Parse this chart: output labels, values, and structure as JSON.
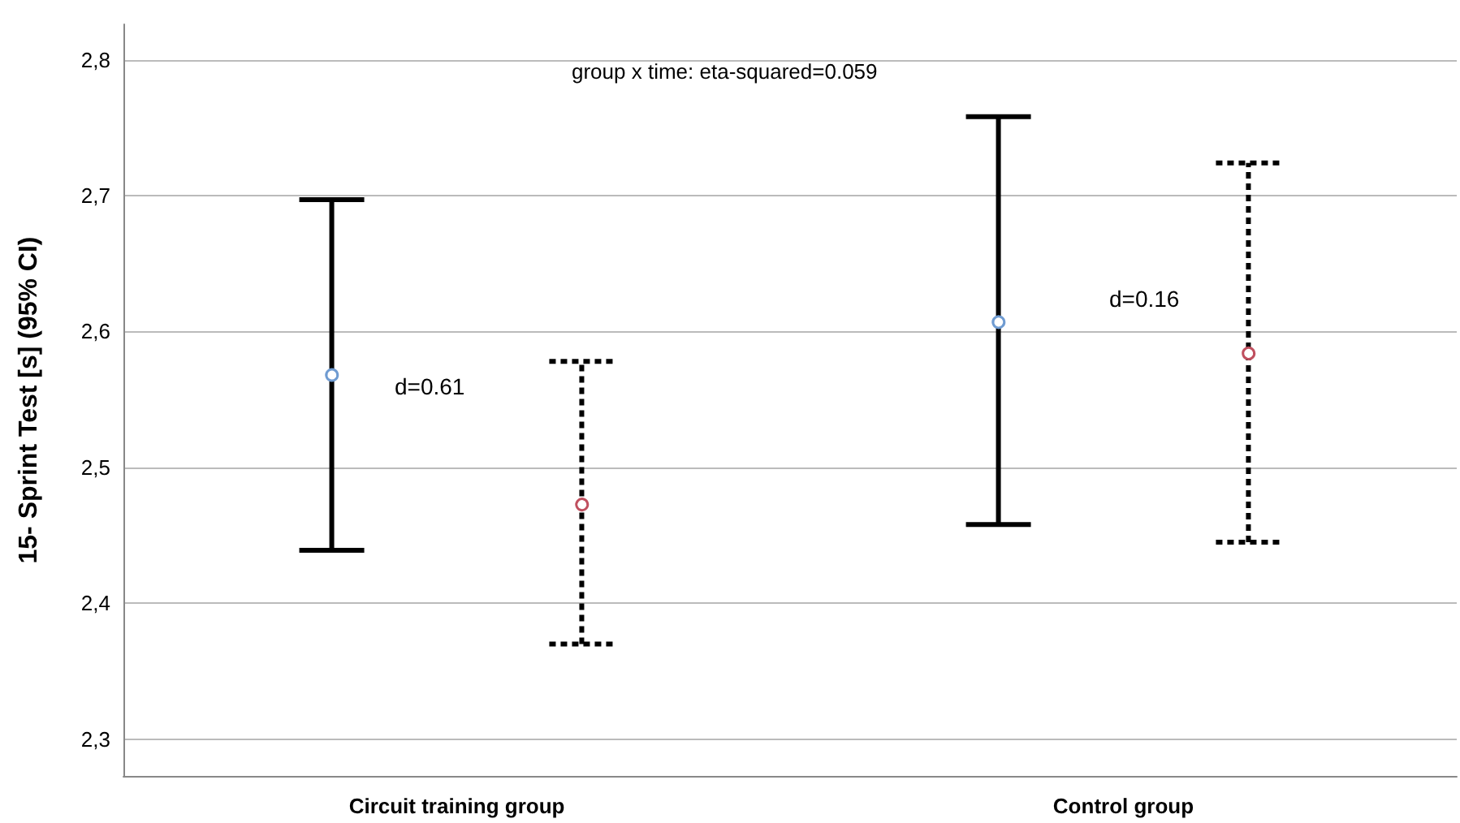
{
  "chart_data": {
    "type": "scatter",
    "ylabel": "15- Sprint Test [s] (95% CI)",
    "categories": [
      "Circuit training group",
      "Control group"
    ],
    "series": [
      {
        "color": "#6f9bd1",
        "values": [
          2.569,
          2.608
        ],
        "errors": [
          [
            2.439,
            2.697
          ],
          [
            2.458,
            2.758
          ]
        ],
        "line_style": "solid"
      },
      {
        "color": "#c0505f",
        "values": [
          2.474,
          2.585
        ],
        "errors": [
          [
            2.37,
            2.578
          ],
          [
            2.445,
            2.724
          ]
        ],
        "line_style": "dashed"
      }
    ],
    "ylim": [
      2.273,
      2.826
    ],
    "yticks": [
      {
        "value": 2.3,
        "label": "2,3"
      },
      {
        "value": 2.4,
        "label": "2,4"
      },
      {
        "value": 2.5,
        "label": "2,5"
      },
      {
        "value": 2.6,
        "label": "2,6"
      },
      {
        "value": 2.7,
        "label": "2,7"
      },
      {
        "value": 2.8,
        "label": "2,8"
      }
    ],
    "grid": "y",
    "marker": "circle",
    "annotations": [
      "group x time: eta-squared=0.059",
      "d=0.61",
      "d=0.16"
    ]
  }
}
